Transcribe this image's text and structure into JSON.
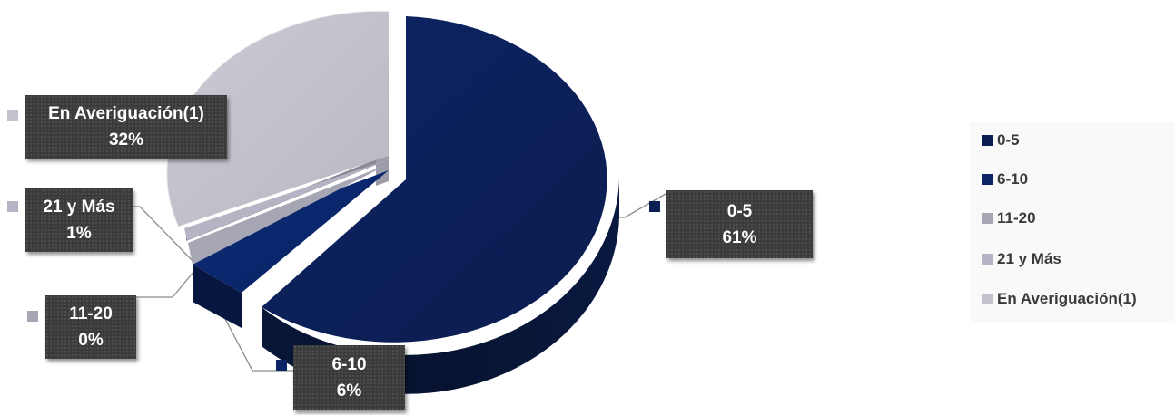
{
  "chart_data": {
    "type": "pie",
    "style": "3d-exploded",
    "legend_position": "right",
    "title": "",
    "slices": [
      {
        "name": "0-5",
        "value": 61,
        "label": "61%",
        "color": "#0c1f55"
      },
      {
        "name": "6-10",
        "value": 6,
        "label": "6%",
        "color": "#0a2466"
      },
      {
        "name": "11-20",
        "value": 0,
        "label": "0%",
        "color": "#a6a6b4"
      },
      {
        "name": "21 y Más",
        "value": 1,
        "label": "1%",
        "color": "#b4b4c4"
      },
      {
        "name": "En Averiguación(1)",
        "value": 32,
        "label": "32%",
        "color": "#c2c2cc"
      }
    ]
  }
}
